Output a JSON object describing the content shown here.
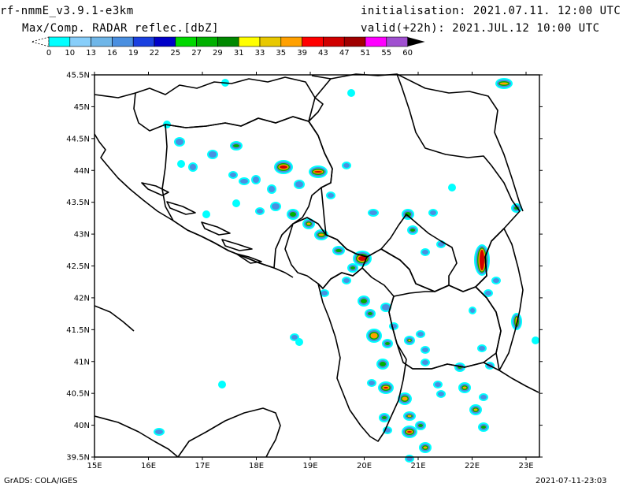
{
  "header": {
    "model": "rf-nmmE_v3.9.1-e3km",
    "field": "Max/Comp. RADAR reflec.[dbZ]",
    "init": "initialisation: 2021.07.11. 12:00 UTC",
    "valid": "valid(+22h): 2021.JUL.12 10:00 UTC"
  },
  "colorbar": {
    "labels": [
      "0",
      "10",
      "13",
      "16",
      "19",
      "22",
      "25",
      "27",
      "29",
      "31",
      "33",
      "35",
      "39",
      "43",
      "47",
      "51",
      "55",
      "60"
    ],
    "colors": [
      "#00ffff",
      "#87cefa",
      "#6fb6e8",
      "#4a8fe0",
      "#1a40e0",
      "#0000c8",
      "#00d800",
      "#00b000",
      "#008800",
      "#ffff00",
      "#e8c800",
      "#ffa000",
      "#ff0000",
      "#d00000",
      "#a00000",
      "#ff00ff",
      "#a050d0",
      "#000000"
    ]
  },
  "map": {
    "lat_labels": [
      "45.5N",
      "45N",
      "44.5N",
      "44N",
      "43.5N",
      "43N",
      "42.5N",
      "42N",
      "41.5N",
      "41N",
      "40.5N",
      "40N",
      "39.5N"
    ],
    "lon_labels": [
      "15E",
      "16E",
      "17E",
      "18E",
      "19E",
      "20E",
      "21E",
      "22E",
      "23E"
    ]
  },
  "footer": {
    "credit": "GrADS: COLA/IGES",
    "timestamp": "2021-07-11-23:03"
  }
}
